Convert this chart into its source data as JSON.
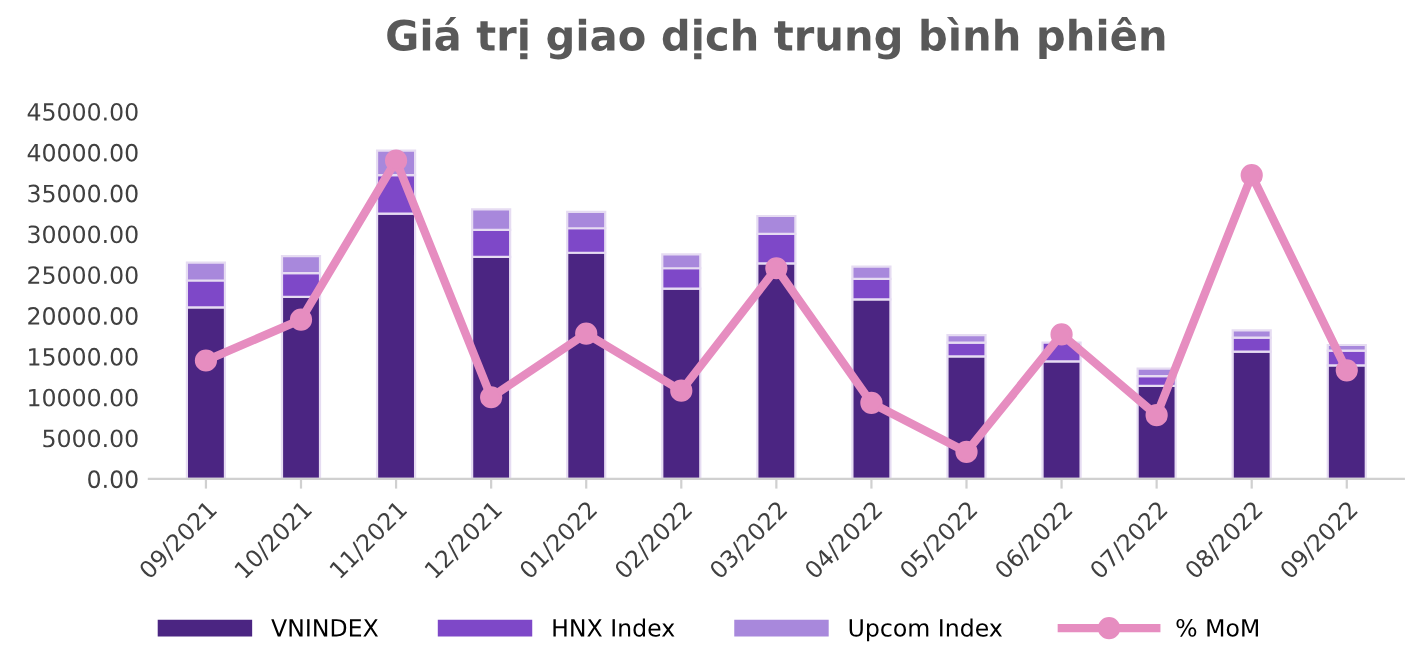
{
  "chart_data": {
    "type": "bar",
    "title": "Giá trị giao dịch trung bình phiên",
    "stacked": true,
    "categories": [
      "09/2021",
      "10/2021",
      "11/2021",
      "12/2021",
      "01/2022",
      "02/2022",
      "03/2022",
      "04/2022",
      "05/2022",
      "06/2022",
      "07/2022",
      "08/2022",
      "09/2022"
    ],
    "series": [
      {
        "name": "VNINDEX",
        "color": "#4b2582",
        "values": [
          21000,
          22300,
          32500,
          27200,
          27700,
          23300,
          26400,
          22000,
          15000,
          14400,
          11400,
          15600,
          13900
        ]
      },
      {
        "name": "HNX Index",
        "color": "#7e48c8",
        "values": [
          3300,
          2900,
          4700,
          3300,
          3000,
          2500,
          3600,
          2500,
          1700,
          2300,
          1200,
          1700,
          1800
        ]
      },
      {
        "name": "Upcom Index",
        "color": "#a888dc",
        "values": [
          2200,
          2100,
          3000,
          2500,
          2000,
          1700,
          2200,
          1500,
          900,
          null,
          900,
          900,
          700
        ]
      },
      {
        "name": "% MoM",
        "color": "#e68dc0",
        "type": "line",
        "marker": "circle",
        "values": [
          14500,
          19500,
          39000,
          10000,
          17800,
          10800,
          25800,
          9300,
          3300,
          17700,
          7800,
          37200,
          13300
        ]
      }
    ],
    "ylim": [
      0,
      45000
    ],
    "yticks": [
      {
        "value": 0,
        "label": "0.00"
      },
      {
        "value": 5000,
        "label": "5000.00"
      },
      {
        "value": 10000,
        "label": "10000.00"
      },
      {
        "value": 15000,
        "label": "15000.00"
      },
      {
        "value": 20000,
        "label": "20000.00"
      },
      {
        "value": 25000,
        "label": "25000.00"
      },
      {
        "value": 30000,
        "label": "30000.00"
      },
      {
        "value": 35000,
        "label": "35000.00"
      },
      {
        "value": 40000,
        "label": "40000.00"
      },
      {
        "value": 45000,
        "label": "45000.00"
      }
    ],
    "legend": "bottom"
  }
}
